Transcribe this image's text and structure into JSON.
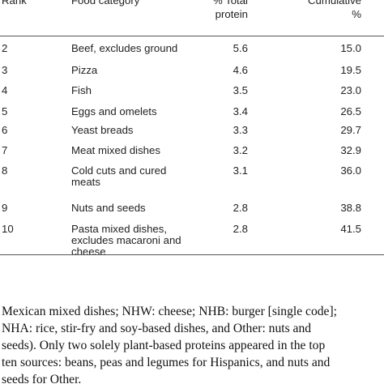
{
  "table": {
    "headers": {
      "rank": "Rank",
      "food": "Food category",
      "pct_line1": "% Total",
      "pct_line2": "protein",
      "cum_line1": "Cumulative",
      "cum_line2": "%"
    },
    "rows": [
      {
        "rank": "2",
        "food": [
          "Beef, excludes ground"
        ],
        "pct": "5.6",
        "cum": "15.0"
      },
      {
        "rank": "3",
        "food": [
          "Pizza"
        ],
        "pct": "4.6",
        "cum": "19.5"
      },
      {
        "rank": "4",
        "food": [
          "Fish"
        ],
        "pct": "3.5",
        "cum": "23.0"
      },
      {
        "rank": "5",
        "food": [
          "Eggs and omelets"
        ],
        "pct": "3.4",
        "cum": "26.5"
      },
      {
        "rank": "6",
        "food": [
          "Yeast breads"
        ],
        "pct": "3.3",
        "cum": "29.7"
      },
      {
        "rank": "7",
        "food": [
          "Meat mixed dishes"
        ],
        "pct": "3.2",
        "cum": "32.9"
      },
      {
        "rank": "8",
        "food": [
          "Cold cuts and cured",
          "meats"
        ],
        "pct": "3.1",
        "cum": "36.0"
      },
      {
        "rank": "9",
        "food": [
          "Nuts and seeds"
        ],
        "pct": "2.8",
        "cum": "38.8"
      },
      {
        "rank": "10",
        "food": [
          "Pasta mixed dishes,",
          "excludes macaroni and",
          "cheese"
        ],
        "pct": "2.8",
        "cum": "41.5"
      }
    ]
  },
  "footnote": {
    "lines": [
      "Mexican mixed dishes; NHW: cheese; NHB: burger [single code];",
      "NHA: rice, stir-fry and soy-based dishes, and Other: nuts and",
      "seeds). Only two solely plant-based proteins appeared in the top",
      "ten sources: beans, peas and legumes for Hispanics, and nuts and",
      "seeds for Other."
    ]
  }
}
